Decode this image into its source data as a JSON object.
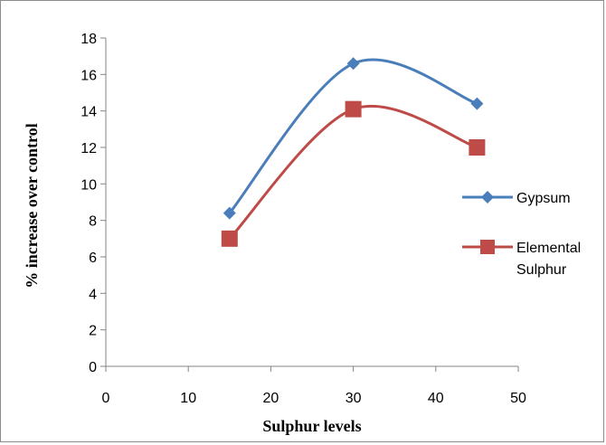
{
  "chart_data": {
    "type": "line",
    "xlabel": "Sulphur levels",
    "ylabel": "% increase over control",
    "xlim": [
      0,
      50
    ],
    "ylim": [
      0,
      18
    ],
    "x_ticks": [
      "0",
      "10",
      "20",
      "30",
      "40",
      "50"
    ],
    "y_ticks": [
      "0",
      "2",
      "4",
      "6",
      "8",
      "10",
      "12",
      "14",
      "16",
      "18"
    ],
    "grid": false,
    "smoothed": true,
    "legend_position": "right",
    "x": [
      15,
      30,
      45
    ],
    "series": [
      {
        "name": "Gypsum",
        "values": [
          8.4,
          16.6,
          14.4
        ],
        "color": "#4a7ebb",
        "marker": "diamond"
      },
      {
        "name": "Elemental Sulphur",
        "legend_lines": [
          "Elemental",
          "Sulphur"
        ],
        "values": [
          7.0,
          14.1,
          12.0
        ],
        "color": "#be4b48",
        "marker": "square"
      }
    ]
  }
}
